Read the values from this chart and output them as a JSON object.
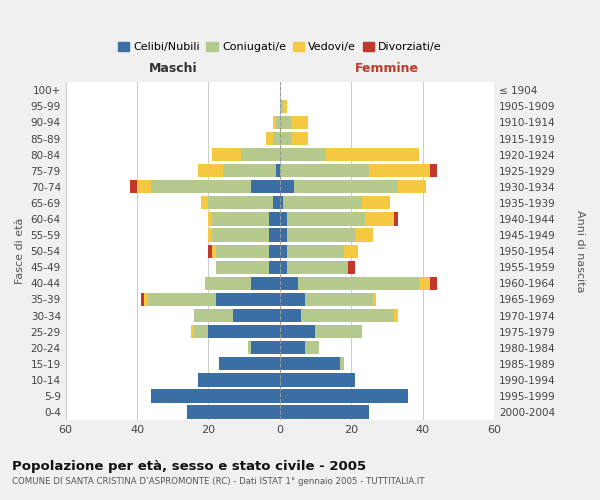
{
  "age_groups": [
    "0-4",
    "5-9",
    "10-14",
    "15-19",
    "20-24",
    "25-29",
    "30-34",
    "35-39",
    "40-44",
    "45-49",
    "50-54",
    "55-59",
    "60-64",
    "65-69",
    "70-74",
    "75-79",
    "80-84",
    "85-89",
    "90-94",
    "95-99",
    "100+"
  ],
  "birth_years": [
    "2000-2004",
    "1995-1999",
    "1990-1994",
    "1985-1989",
    "1980-1984",
    "1975-1979",
    "1970-1974",
    "1965-1969",
    "1960-1964",
    "1955-1959",
    "1950-1954",
    "1945-1949",
    "1940-1944",
    "1935-1939",
    "1930-1934",
    "1925-1929",
    "1920-1924",
    "1915-1919",
    "1910-1914",
    "1905-1909",
    "≤ 1904"
  ],
  "colors": {
    "celibi": "#3a6ea5",
    "coniugati": "#b5c98e",
    "vedovi": "#f5c842",
    "divorziati": "#c0392b"
  },
  "maschi": {
    "celibi": [
      26,
      36,
      23,
      17,
      8,
      20,
      13,
      18,
      8,
      3,
      3,
      3,
      3,
      2,
      8,
      1,
      0,
      0,
      0,
      0,
      0
    ],
    "coniugati": [
      0,
      0,
      0,
      0,
      1,
      4,
      11,
      19,
      13,
      15,
      15,
      16,
      16,
      18,
      28,
      15,
      11,
      2,
      1,
      0,
      0
    ],
    "vedovi": [
      0,
      0,
      0,
      0,
      0,
      1,
      0,
      1,
      0,
      0,
      1,
      1,
      1,
      2,
      4,
      7,
      8,
      2,
      1,
      0,
      0
    ],
    "divorziati": [
      0,
      0,
      0,
      0,
      0,
      0,
      0,
      1,
      0,
      0,
      1,
      0,
      0,
      0,
      2,
      0,
      0,
      0,
      0,
      0,
      0
    ]
  },
  "femmine": {
    "celibi": [
      25,
      36,
      21,
      17,
      7,
      10,
      6,
      7,
      5,
      2,
      2,
      2,
      2,
      1,
      4,
      0,
      0,
      0,
      0,
      0,
      0
    ],
    "coniugati": [
      0,
      0,
      0,
      1,
      4,
      13,
      26,
      19,
      34,
      17,
      16,
      19,
      22,
      22,
      29,
      25,
      13,
      3,
      3,
      1,
      0
    ],
    "vedovi": [
      0,
      0,
      0,
      0,
      0,
      0,
      1,
      1,
      3,
      0,
      4,
      5,
      8,
      8,
      8,
      17,
      26,
      5,
      5,
      1,
      0
    ],
    "divorziati": [
      0,
      0,
      0,
      0,
      0,
      0,
      0,
      0,
      2,
      2,
      0,
      0,
      1,
      0,
      0,
      2,
      0,
      0,
      0,
      0,
      0
    ]
  },
  "xlim": 60,
  "xtick_step": 20,
  "title": "Popolazione per età, sesso e stato civile - 2005",
  "subtitle": "COMUNE DI SANTA CRISTINA D’ASPROMONTE (RC) - Dati ISTAT 1° gennaio 2005 - TUTTITALIA.IT",
  "xlabel_left": "Maschi",
  "xlabel_right": "Femmine",
  "ylabel_left": "Fasce di età",
  "ylabel_right": "Anni di nascita",
  "legend_labels": [
    "Celibi/Nubili",
    "Coniugati/e",
    "Vedovi/e",
    "Divorziati/e"
  ],
  "bg_color": "#f0f0f0",
  "plot_bg": "#ffffff",
  "grid_color": "#cccccc",
  "maschi_label_color": "#333333",
  "femmine_label_color": "#c0392b"
}
